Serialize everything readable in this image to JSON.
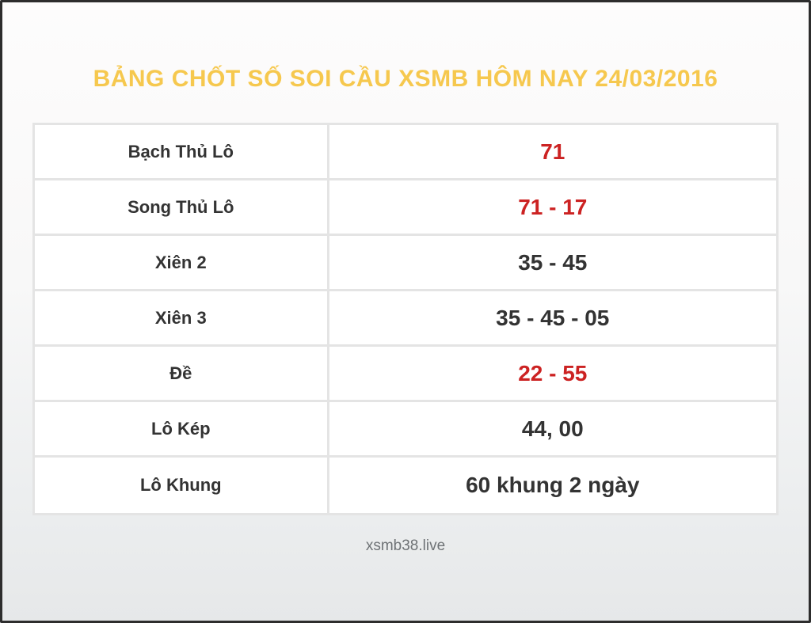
{
  "page": {
    "title": "BẢNG CHỐT SỐ SOI CẦU XSMB HÔM NAY 24/03/2016",
    "footer": "xsmb38.live"
  },
  "table": {
    "rows": [
      {
        "label": "Bạch Thủ Lô",
        "value": "71",
        "highlight": true
      },
      {
        "label": "Song Thủ Lô",
        "value": "71 - 17",
        "highlight": true
      },
      {
        "label": "Xiên 2",
        "value": "35 - 45",
        "highlight": false
      },
      {
        "label": "Xiên 3",
        "value": "35 - 45 - 05",
        "highlight": false
      },
      {
        "label": "Đề",
        "value": "22 - 55",
        "highlight": true
      },
      {
        "label": "Lô Kép",
        "value": "44, 00",
        "highlight": false
      },
      {
        "label": "Lô Khung",
        "value": "60 khung 2 ngày",
        "highlight": false
      }
    ]
  },
  "colors": {
    "title": "#f6c84e",
    "value_highlight": "#cc2222",
    "text_dark": "#333333",
    "cell_border": "#e4e4e4",
    "footer_text": "#6e7275",
    "frame_border": "#2d2d2d"
  }
}
